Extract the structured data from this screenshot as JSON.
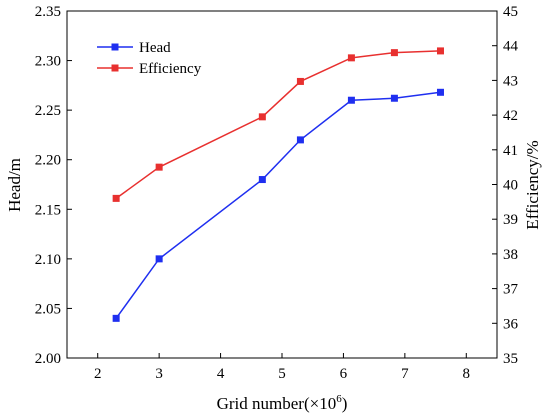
{
  "chart_data": {
    "type": "line",
    "title": "",
    "xlabel": "Grid number(×10",
    "xlabel_sup": "6",
    "xlabel_close": ")",
    "ylabel_left": "Head/m",
    "ylabel_right": "Efficiency/%",
    "xlim": [
      1.5,
      8.5
    ],
    "ylim_left": [
      2.0,
      2.35
    ],
    "ylim_right": [
      35,
      45
    ],
    "x_ticks": [
      2,
      3,
      4,
      5,
      6,
      7,
      8
    ],
    "y_left_ticks": [
      "2.00",
      "2.05",
      "2.10",
      "2.15",
      "2.20",
      "2.25",
      "2.30",
      "2.35"
    ],
    "y_right_ticks": [
      "35",
      "36",
      "37",
      "38",
      "39",
      "40",
      "41",
      "42",
      "43",
      "44",
      "45"
    ],
    "grid": false,
    "legend_position": "top-left",
    "series": [
      {
        "name": "Head",
        "axis": "left",
        "color": "#1f2ff0",
        "marker": "square",
        "x": [
          2.3,
          3.0,
          4.68,
          5.3,
          6.13,
          6.83,
          7.58
        ],
        "values": [
          2.04,
          2.1,
          2.18,
          2.22,
          2.26,
          2.262,
          2.268
        ]
      },
      {
        "name": "Efficiency",
        "axis": "right",
        "color": "#e8302f",
        "marker": "square",
        "x": [
          2.3,
          3.0,
          4.68,
          5.3,
          6.13,
          6.83,
          7.58
        ],
        "values": [
          39.6,
          40.5,
          41.95,
          42.97,
          43.65,
          43.8,
          43.85
        ]
      }
    ]
  }
}
